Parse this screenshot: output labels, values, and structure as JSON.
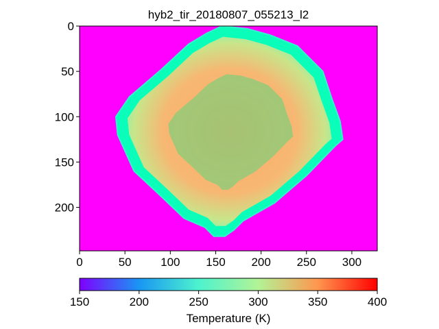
{
  "chart_data": {
    "type": "heatmap",
    "title": "hyb2_tir_20180807_055213_l2",
    "xlim": [
      0,
      328
    ],
    "ylim": [
      248,
      0
    ],
    "x_ticks": [
      0,
      50,
      100,
      150,
      200,
      250,
      300
    ],
    "y_ticks": [
      0,
      50,
      100,
      150,
      200
    ],
    "background_value": 150,
    "object_outline": [
      [
        157,
        0
      ],
      [
        185,
        3
      ],
      [
        210,
        10
      ],
      [
        240,
        22
      ],
      [
        268,
        50
      ],
      [
        278,
        80
      ],
      [
        287,
        105
      ],
      [
        290,
        125
      ],
      [
        282,
        132
      ],
      [
        250,
        165
      ],
      [
        215,
        195
      ],
      [
        180,
        215
      ],
      [
        170,
        225
      ],
      [
        160,
        232
      ],
      [
        148,
        232
      ],
      [
        138,
        222
      ],
      [
        115,
        212
      ],
      [
        90,
        188
      ],
      [
        60,
        160
      ],
      [
        42,
        120
      ],
      [
        40,
        100
      ],
      [
        55,
        78
      ],
      [
        90,
        48
      ],
      [
        120,
        20
      ],
      [
        140,
        8
      ]
    ],
    "typical_surface_temperature": 320,
    "limb_temperature": 270,
    "colorbar": {
      "label": "Temperature (K)",
      "range": [
        150,
        400
      ],
      "ticks": [
        150,
        200,
        250,
        300,
        350,
        400
      ],
      "colormap": "rainbow"
    }
  }
}
